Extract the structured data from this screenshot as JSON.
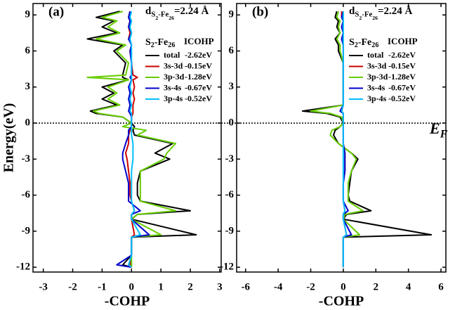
{
  "chart_data": [
    {
      "type": "line",
      "panel_label": "(a)",
      "distance_label": {
        "parts": [
          "d",
          "S",
          "2",
          "-Fe",
          "26",
          "=2.24 Å"
        ]
      },
      "legend_title": {
        "parts": [
          "S",
          "2",
          "-Fe",
          "26"
        ]
      },
      "legend_value_header": "ICOHP",
      "ylabel": "Energy(eV)",
      "xlabel": "-COHP",
      "xlim": [
        -3.35,
        3.05
      ],
      "xticks": [
        -3,
        -2,
        -1,
        0,
        1,
        2,
        3
      ],
      "ylim": [
        -12.4,
        9.95
      ],
      "yticks": [
        9,
        6,
        3,
        0,
        -3,
        -6,
        -9,
        -12
      ],
      "fermi_energy": 0,
      "energy": [
        9.3,
        8.8,
        8.5,
        8,
        7.5,
        7,
        6.5,
        6,
        5,
        4,
        3.8,
        3.6,
        3,
        2.5,
        2,
        1.5,
        1,
        0.8,
        0.5,
        0,
        -0.3,
        -0.6,
        -1,
        -1.7,
        -2.5,
        -3,
        -4,
        -5,
        -6,
        -6.5,
        -7.3,
        -7.6,
        -8,
        -9.3,
        -9.5,
        -11,
        -11.8,
        -12
      ],
      "series": [
        {
          "name": "total",
          "icohp": "-2.62eV",
          "color": "#000000",
          "values": [
            -0.4,
            -1.2,
            -0.6,
            -1.0,
            -0.5,
            -1.5,
            -0.3,
            -0.6,
            -0.2,
            -0.3,
            -0.3,
            -0.1,
            -1.0,
            -0.6,
            -1.0,
            -0.5,
            -1.4,
            -1.2,
            -0.3,
            0,
            0.1,
            0.05,
            0.1,
            1.4,
            0.8,
            1.3,
            0.3,
            0.2,
            0.2,
            0.3,
            2.0,
            0.2,
            0,
            2.2,
            0,
            0,
            -0.3,
            0
          ]
        },
        {
          "name": "3s-3d",
          "icohp": "-0.15eV",
          "color": "#cc0000",
          "values": [
            -0.05,
            -0.1,
            -0.05,
            -0.1,
            -0.05,
            -0.1,
            0,
            -0.05,
            0,
            0.05,
            0.2,
            0.05,
            0.1,
            0.05,
            0.1,
            0.05,
            0.05,
            0.05,
            0,
            0,
            0,
            -0.05,
            -0.1,
            -0.1,
            -0.2,
            -0.15,
            -0.1,
            -0.05,
            -0.05,
            0,
            0.1,
            0,
            0,
            0.1,
            0,
            0,
            -0.05,
            0
          ]
        },
        {
          "name": "3p-3d",
          "icohp": "-1.28eV",
          "color": "#66cc00",
          "values": [
            -0.3,
            -1.0,
            -0.5,
            -0.8,
            -0.4,
            -1.2,
            -0.2,
            -0.5,
            -0.1,
            -0.2,
            -1.5,
            -0.1,
            -0.8,
            -0.5,
            -0.8,
            -0.4,
            -1.3,
            -1.1,
            -0.3,
            0,
            -0.3,
            0.5,
            0.2,
            1.5,
            1.2,
            1.1,
            0.3,
            0.3,
            0.3,
            0.3,
            1.5,
            0.2,
            0,
            1.0,
            0,
            0,
            0,
            0
          ]
        },
        {
          "name": "3s-4s",
          "icohp": "-0.67eV",
          "color": "#0000cc",
          "values": [
            -0.05,
            -0.1,
            -0.05,
            -0.1,
            0,
            -0.1,
            0,
            -0.05,
            0,
            0,
            -0.05,
            0,
            -0.1,
            -0.05,
            -0.1,
            -0.05,
            -0.1,
            -0.05,
            0,
            0,
            0,
            -0.1,
            -0.1,
            -0.2,
            -0.3,
            -0.3,
            -0.2,
            -0.1,
            -0.1,
            -0.1,
            0.3,
            0,
            0,
            0.6,
            0,
            0,
            -0.5,
            0
          ]
        },
        {
          "name": "3p-4s",
          "icohp": "-0.52eV",
          "color": "#00bfff",
          "values": [
            0,
            -0.05,
            0,
            -0.05,
            0,
            -0.05,
            0,
            0,
            0,
            0,
            0,
            0,
            -0.05,
            0,
            -0.05,
            0,
            -0.05,
            0,
            0,
            0,
            0,
            0,
            0,
            0.05,
            0.05,
            0.05,
            0,
            0,
            0,
            0,
            0.1,
            0,
            0,
            0.3,
            0,
            0,
            -0.1,
            0
          ]
        }
      ]
    },
    {
      "type": "line",
      "panel_label": "(b)",
      "distance_label": {
        "parts": [
          "d",
          "S",
          "2",
          "-Fe",
          "26",
          "=2.24 Å"
        ]
      },
      "legend_title": {
        "parts": [
          "S",
          "2",
          "-Fe",
          "26"
        ]
      },
      "legend_value_header": "ICOHP",
      "xlabel": "-COHP",
      "fermi_label": {
        "parts": [
          "E",
          "F"
        ]
      },
      "xlim": [
        -6.55,
        6.3
      ],
      "xticks": [
        -6,
        -4,
        -2,
        0,
        2,
        4,
        6
      ],
      "ylim": [
        -12.4,
        9.95
      ],
      "yticks": [
        9,
        6,
        3,
        0,
        -3,
        -6,
        -9,
        -12
      ],
      "fermi_energy": 0,
      "energy": [
        9.3,
        8.8,
        8.5,
        8,
        7.5,
        7,
        6.5,
        6,
        5,
        4,
        3.8,
        3.6,
        3,
        2.5,
        2,
        1.5,
        1,
        0.8,
        0.5,
        0,
        -0.3,
        -0.6,
        -1,
        -1.7,
        -2.5,
        -3,
        -4,
        -5,
        -6,
        -6.5,
        -7.3,
        -7.6,
        -8,
        -9.3,
        -9.5,
        -11,
        -11.8,
        -12
      ],
      "series": [
        {
          "name": "total",
          "icohp": "-2.62eV",
          "color": "#000000",
          "values": [
            -0.4,
            -0.5,
            -0.3,
            -0.4,
            -0.2,
            -0.5,
            -0.3,
            -0.3,
            0,
            0,
            0,
            0,
            0,
            0,
            0,
            0,
            -2.5,
            -1.0,
            -0.2,
            0,
            -0.2,
            -0.5,
            -0.6,
            -0.3,
            0.5,
            0.9,
            0.5,
            0.4,
            0.3,
            0.4,
            1.7,
            0.2,
            0,
            5.4,
            0,
            0,
            0,
            0
          ]
        },
        {
          "name": "3s-3d",
          "icohp": "-0.15eV",
          "color": "#cc0000",
          "values": [
            -0.1,
            -0.1,
            0,
            -0.1,
            0,
            -0.1,
            0,
            0,
            0,
            0,
            0,
            0,
            0,
            0,
            0,
            0,
            -0.1,
            0,
            0,
            0,
            0,
            0,
            0,
            0,
            0.1,
            0.1,
            0.1,
            0,
            0,
            0,
            0.1,
            0,
            0,
            0.2,
            0,
            0,
            0,
            0
          ]
        },
        {
          "name": "3p-3d",
          "icohp": "-1.28eV",
          "color": "#66cc00",
          "values": [
            -0.3,
            -0.4,
            -0.2,
            -0.3,
            -0.2,
            -0.4,
            -0.2,
            -0.2,
            0,
            0,
            0,
            0,
            0,
            0,
            0,
            0,
            -2.0,
            -0.8,
            -0.1,
            0,
            -0.2,
            -0.7,
            -0.8,
            -0.3,
            0.5,
            0.8,
            0.5,
            0.3,
            0.3,
            0.3,
            1.2,
            0.1,
            0,
            1.0,
            0,
            0,
            0,
            0
          ]
        },
        {
          "name": "3s-4s",
          "icohp": "-0.67eV",
          "color": "#0000cc",
          "values": [
            0,
            -0.1,
            0,
            -0.1,
            0,
            -0.1,
            0,
            0,
            0,
            0,
            0,
            0,
            0,
            0,
            0,
            0,
            -0.2,
            0,
            0,
            0,
            0,
            0,
            0,
            0,
            0.1,
            0.1,
            0.1,
            0,
            0,
            0,
            0.3,
            0,
            0,
            0.5,
            0,
            0,
            0,
            0
          ]
        },
        {
          "name": "3p-4s",
          "icohp": "-0.52eV",
          "color": "#00bfff",
          "values": [
            0,
            0,
            0,
            0,
            0,
            0,
            0,
            0,
            0,
            0,
            0,
            0,
            0,
            0,
            0,
            0,
            -0.1,
            0,
            0,
            0,
            0,
            0,
            0,
            0,
            0,
            0,
            0,
            0,
            0,
            0,
            0.1,
            0,
            0,
            0.2,
            0,
            0,
            0,
            0
          ]
        }
      ]
    }
  ]
}
